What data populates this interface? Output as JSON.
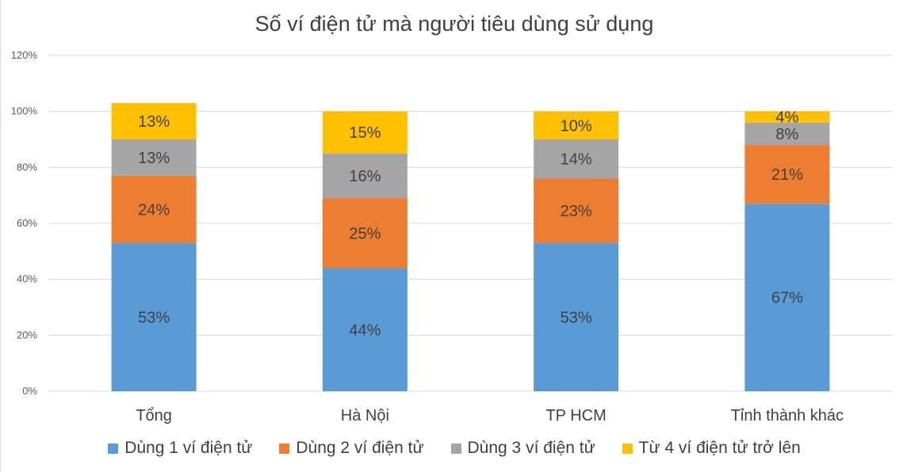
{
  "chart_data": {
    "type": "bar",
    "stacked": true,
    "title": "Số ví điện tử mà người tiêu dùng sử dụng",
    "categories": [
      "Tổng",
      "Hà Nội",
      "TP HCM",
      "Tỉnh thành khác"
    ],
    "series": [
      {
        "name": "Dùng 1 ví điện tử",
        "color": "#5b9bd5",
        "values": [
          53,
          44,
          53,
          67
        ],
        "labels": [
          "53%",
          "44%",
          "53%",
          "67%"
        ]
      },
      {
        "name": "Dùng 2 ví điện tử",
        "color": "#ed7d31",
        "values": [
          24,
          25,
          23,
          21
        ],
        "labels": [
          "24%",
          "25%",
          "23%",
          "21%"
        ]
      },
      {
        "name": "Dùng 3 ví điện tử",
        "color": "#a5a5a5",
        "values": [
          13,
          16,
          14,
          8
        ],
        "labels": [
          "13%",
          "16%",
          "14%",
          "8%"
        ]
      },
      {
        "name": "Từ 4 ví điện tử trở lên",
        "color": "#ffc000",
        "values": [
          13,
          15,
          10,
          4
        ],
        "labels": [
          "13%",
          "15%",
          "10%",
          "4%"
        ]
      }
    ],
    "y_ticks": [
      "0%",
      "20%",
      "40%",
      "60%",
      "80%",
      "100%",
      "120%"
    ],
    "ylim": [
      0,
      120
    ],
    "grid": true,
    "legend_position": "bottom"
  }
}
